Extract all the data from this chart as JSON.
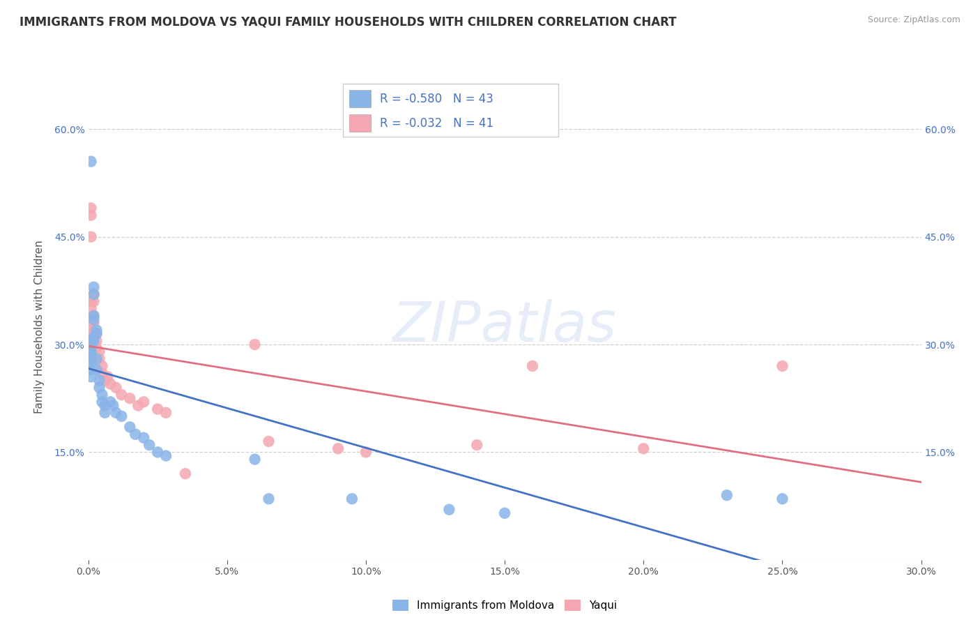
{
  "title": "IMMIGRANTS FROM MOLDOVA VS YAQUI FAMILY HOUSEHOLDS WITH CHILDREN CORRELATION CHART",
  "source": "Source: ZipAtlas.com",
  "ylabel": "Family Households with Children",
  "legend_label_blue": "Immigrants from Moldova",
  "legend_label_pink": "Yaqui",
  "legend_R_blue": "R = -0.580",
  "legend_N_blue": "N = 43",
  "legend_R_pink": "R = -0.032",
  "legend_N_pink": "N = 41",
  "xlim": [
    0.0,
    0.3
  ],
  "ylim": [
    0.0,
    0.65
  ],
  "xtick_vals": [
    0.0,
    0.05,
    0.1,
    0.15,
    0.2,
    0.25,
    0.3
  ],
  "ytick_vals": [
    0.15,
    0.3,
    0.45,
    0.6
  ],
  "watermark": "ZIPatlas",
  "color_blue": "#89b4e8",
  "color_pink": "#f4a7b0",
  "line_color_blue": "#4472c4",
  "line_color_pink": "#e07080",
  "background_color": "#ffffff",
  "grid_color": "#d0d0d0",
  "blue_scatter": [
    [
      0.001,
      0.555
    ],
    [
      0.001,
      0.305
    ],
    [
      0.001,
      0.3
    ],
    [
      0.001,
      0.295
    ],
    [
      0.001,
      0.29
    ],
    [
      0.001,
      0.285
    ],
    [
      0.001,
      0.28
    ],
    [
      0.001,
      0.275
    ],
    [
      0.001,
      0.265
    ],
    [
      0.001,
      0.255
    ],
    [
      0.002,
      0.38
    ],
    [
      0.002,
      0.37
    ],
    [
      0.002,
      0.34
    ],
    [
      0.002,
      0.335
    ],
    [
      0.002,
      0.31
    ],
    [
      0.002,
      0.305
    ],
    [
      0.003,
      0.32
    ],
    [
      0.003,
      0.315
    ],
    [
      0.003,
      0.28
    ],
    [
      0.003,
      0.265
    ],
    [
      0.004,
      0.25
    ],
    [
      0.004,
      0.24
    ],
    [
      0.005,
      0.23
    ],
    [
      0.005,
      0.22
    ],
    [
      0.006,
      0.215
    ],
    [
      0.006,
      0.205
    ],
    [
      0.008,
      0.22
    ],
    [
      0.009,
      0.215
    ],
    [
      0.01,
      0.205
    ],
    [
      0.012,
      0.2
    ],
    [
      0.015,
      0.185
    ],
    [
      0.017,
      0.175
    ],
    [
      0.02,
      0.17
    ],
    [
      0.022,
      0.16
    ],
    [
      0.025,
      0.15
    ],
    [
      0.028,
      0.145
    ],
    [
      0.06,
      0.14
    ],
    [
      0.065,
      0.085
    ],
    [
      0.095,
      0.085
    ],
    [
      0.13,
      0.07
    ],
    [
      0.15,
      0.065
    ],
    [
      0.23,
      0.09
    ],
    [
      0.25,
      0.085
    ]
  ],
  "pink_scatter": [
    [
      0.001,
      0.49
    ],
    [
      0.001,
      0.48
    ],
    [
      0.001,
      0.45
    ],
    [
      0.001,
      0.36
    ],
    [
      0.001,
      0.35
    ],
    [
      0.001,
      0.32
    ],
    [
      0.001,
      0.315
    ],
    [
      0.001,
      0.308
    ],
    [
      0.001,
      0.3
    ],
    [
      0.001,
      0.29
    ],
    [
      0.001,
      0.28
    ],
    [
      0.002,
      0.37
    ],
    [
      0.002,
      0.36
    ],
    [
      0.002,
      0.34
    ],
    [
      0.002,
      0.33
    ],
    [
      0.003,
      0.315
    ],
    [
      0.003,
      0.305
    ],
    [
      0.003,
      0.295
    ],
    [
      0.004,
      0.29
    ],
    [
      0.004,
      0.28
    ],
    [
      0.005,
      0.27
    ],
    [
      0.005,
      0.26
    ],
    [
      0.006,
      0.25
    ],
    [
      0.007,
      0.255
    ],
    [
      0.008,
      0.245
    ],
    [
      0.01,
      0.24
    ],
    [
      0.012,
      0.23
    ],
    [
      0.015,
      0.225
    ],
    [
      0.018,
      0.215
    ],
    [
      0.02,
      0.22
    ],
    [
      0.025,
      0.21
    ],
    [
      0.028,
      0.205
    ],
    [
      0.035,
      0.12
    ],
    [
      0.06,
      0.3
    ],
    [
      0.065,
      0.165
    ],
    [
      0.09,
      0.155
    ],
    [
      0.1,
      0.15
    ],
    [
      0.14,
      0.16
    ],
    [
      0.16,
      0.27
    ],
    [
      0.2,
      0.155
    ],
    [
      0.25,
      0.27
    ]
  ]
}
